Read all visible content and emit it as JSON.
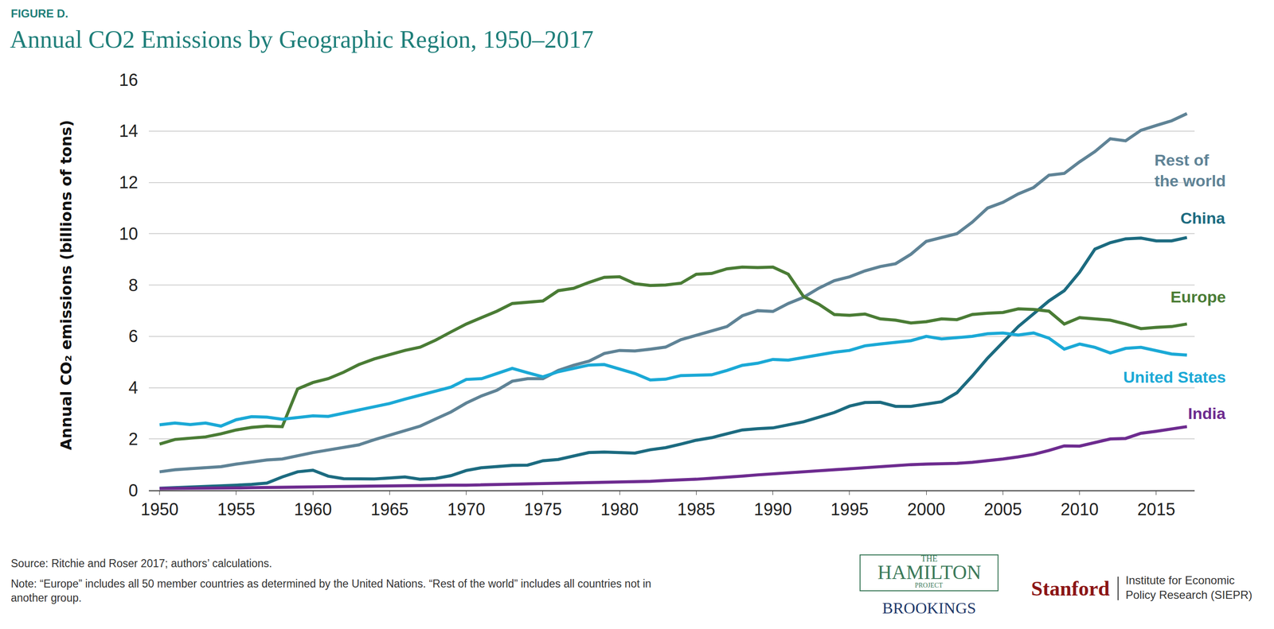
{
  "chart_data": {
    "type": "line",
    "label": "FIGURE D.",
    "title": "Annual CO2 Emissions by Geographic Region, 1950–2017",
    "y_label": "Annual CO₂ emissions (billions of tons)",
    "x": [
      1950,
      1951,
      1952,
      1953,
      1954,
      1955,
      1956,
      1957,
      1958,
      1959,
      1960,
      1961,
      1962,
      1963,
      1964,
      1965,
      1966,
      1967,
      1968,
      1969,
      1970,
      1971,
      1972,
      1973,
      1974,
      1975,
      1976,
      1977,
      1978,
      1979,
      1980,
      1981,
      1982,
      1983,
      1984,
      1985,
      1986,
      1987,
      1988,
      1989,
      1990,
      1991,
      1992,
      1993,
      1994,
      1995,
      1996,
      1997,
      1998,
      1999,
      2000,
      2001,
      2002,
      2003,
      2004,
      2005,
      2006,
      2007,
      2008,
      2009,
      2010,
      2011,
      2012,
      2013,
      2014,
      2015,
      2016,
      2017
    ],
    "series": [
      {
        "name": "Rest of the world",
        "color": "#5f8396",
        "values": [
          0.72,
          0.8,
          0.84,
          0.87,
          0.92,
          1.02,
          1.1,
          1.18,
          1.22,
          1.35,
          1.47,
          1.57,
          1.66,
          1.77,
          1.97,
          2.15,
          2.3,
          2.5,
          2.78,
          3.05,
          3.4,
          3.68,
          3.9,
          4.25,
          4.35,
          4.35,
          4.67,
          4.87,
          5.03,
          5.33,
          5.45,
          5.43,
          5.5,
          5.58,
          5.87,
          6.05,
          6.22,
          6.38,
          6.8,
          7.0,
          6.97,
          7.28,
          7.52,
          7.88,
          8.17,
          8.32,
          8.55,
          8.72,
          8.83,
          9.2,
          9.7,
          9.85,
          10.0,
          10.45,
          11.0,
          11.22,
          11.55,
          11.8,
          12.28,
          12.35,
          12.8,
          13.2,
          13.7,
          13.62,
          14.03,
          14.22,
          14.4,
          14.68
        ]
      },
      {
        "name": "China",
        "color": "#1c6b80",
        "values": [
          0.08,
          0.1,
          0.13,
          0.14,
          0.17,
          0.2,
          0.23,
          0.28,
          0.52,
          0.72,
          0.78,
          0.55,
          0.45,
          0.44,
          0.44,
          0.48,
          0.52,
          0.43,
          0.46,
          0.57,
          0.77,
          0.88,
          0.93,
          0.97,
          0.98,
          1.15,
          1.2,
          1.32,
          1.47,
          1.49,
          1.46,
          1.45,
          1.58,
          1.66,
          1.8,
          1.95,
          2.05,
          2.2,
          2.35,
          2.4,
          2.43,
          2.55,
          2.67,
          2.85,
          3.03,
          3.28,
          3.42,
          3.43,
          3.27,
          3.27,
          3.37,
          3.45,
          3.8,
          4.45,
          5.15,
          5.78,
          6.38,
          6.88,
          7.38,
          7.78,
          8.5,
          9.4,
          9.65,
          9.8,
          9.83,
          9.72,
          9.72,
          9.85
        ]
      },
      {
        "name": "Europe",
        "color": "#4a7c35",
        "values": [
          1.8,
          1.98,
          2.03,
          2.08,
          2.2,
          2.35,
          2.45,
          2.5,
          2.48,
          3.95,
          4.2,
          4.35,
          4.6,
          4.9,
          5.12,
          5.3,
          5.45,
          5.58,
          5.85,
          6.17,
          6.48,
          6.73,
          6.98,
          7.28,
          7.32,
          7.38,
          7.78,
          7.87,
          8.1,
          8.3,
          8.32,
          8.05,
          7.98,
          8.0,
          8.07,
          8.42,
          8.45,
          8.63,
          8.7,
          8.68,
          8.7,
          8.42,
          7.55,
          7.25,
          6.85,
          6.82,
          6.87,
          6.68,
          6.63,
          6.52,
          6.57,
          6.68,
          6.65,
          6.85,
          6.9,
          6.93,
          7.07,
          7.05,
          6.98,
          6.48,
          6.73,
          6.67,
          6.63,
          6.48,
          6.3,
          6.35,
          6.38,
          6.48
        ]
      },
      {
        "name": "United States",
        "color": "#1ba9d6",
        "values": [
          2.55,
          2.62,
          2.56,
          2.62,
          2.5,
          2.75,
          2.87,
          2.85,
          2.77,
          2.85,
          2.9,
          2.88,
          3.0,
          3.12,
          3.25,
          3.38,
          3.55,
          3.7,
          3.85,
          4.02,
          4.32,
          4.35,
          4.55,
          4.75,
          4.58,
          4.42,
          4.62,
          4.75,
          4.88,
          4.9,
          4.73,
          4.55,
          4.3,
          4.33,
          4.47,
          4.48,
          4.5,
          4.67,
          4.87,
          4.95,
          5.1,
          5.07,
          5.18,
          5.28,
          5.38,
          5.45,
          5.63,
          5.7,
          5.75,
          5.83,
          6.0,
          5.9,
          5.95,
          6.0,
          6.1,
          6.13,
          6.05,
          6.13,
          5.93,
          5.5,
          5.7,
          5.57,
          5.35,
          5.53,
          5.57,
          5.43,
          5.31,
          5.27
        ]
      },
      {
        "name": "India",
        "color": "#6d2b8f",
        "values": [
          0.07,
          0.07,
          0.08,
          0.08,
          0.09,
          0.09,
          0.1,
          0.11,
          0.11,
          0.12,
          0.12,
          0.13,
          0.14,
          0.15,
          0.16,
          0.17,
          0.18,
          0.18,
          0.19,
          0.2,
          0.2,
          0.21,
          0.22,
          0.23,
          0.24,
          0.26,
          0.27,
          0.28,
          0.29,
          0.3,
          0.31,
          0.34,
          0.35,
          0.38,
          0.39,
          0.43,
          0.47,
          0.5,
          0.55,
          0.6,
          0.64,
          0.68,
          0.72,
          0.74,
          0.78,
          0.83,
          0.88,
          0.93,
          0.95,
          1.0,
          1.02,
          1.03,
          1.05,
          1.09,
          1.15,
          1.22,
          1.3,
          1.4,
          1.55,
          1.73,
          1.72,
          1.85,
          2.0,
          2.02,
          2.22,
          2.3,
          2.4,
          2.48
        ]
      }
    ],
    "xlim": [
      1949.3,
      2017.5
    ],
    "xticks": [
      1950,
      1955,
      1960,
      1965,
      1970,
      1975,
      1980,
      1985,
      1990,
      1995,
      2000,
      2005,
      2010,
      2015
    ],
    "ylim": [
      0,
      16
    ],
    "yticks": [
      0,
      2,
      4,
      6,
      8,
      10,
      12,
      14,
      16
    ],
    "grid": true,
    "source": "Source: Ritchie and Roser 2017; authors’ calculations.",
    "note": [
      "Note: “Europe” includes all 50 member countries as determined by the United Nations. “Rest of the world” includes all countries not in",
      "another group."
    ],
    "logos": {
      "hamilton": [
        "THE",
        "HAMILTON",
        "PROJECT"
      ],
      "brookings": "BROOKINGS",
      "stanford": "Stanford",
      "siepr": [
        "Institute for Economic",
        "Policy Research (SIEPR)"
      ]
    }
  }
}
